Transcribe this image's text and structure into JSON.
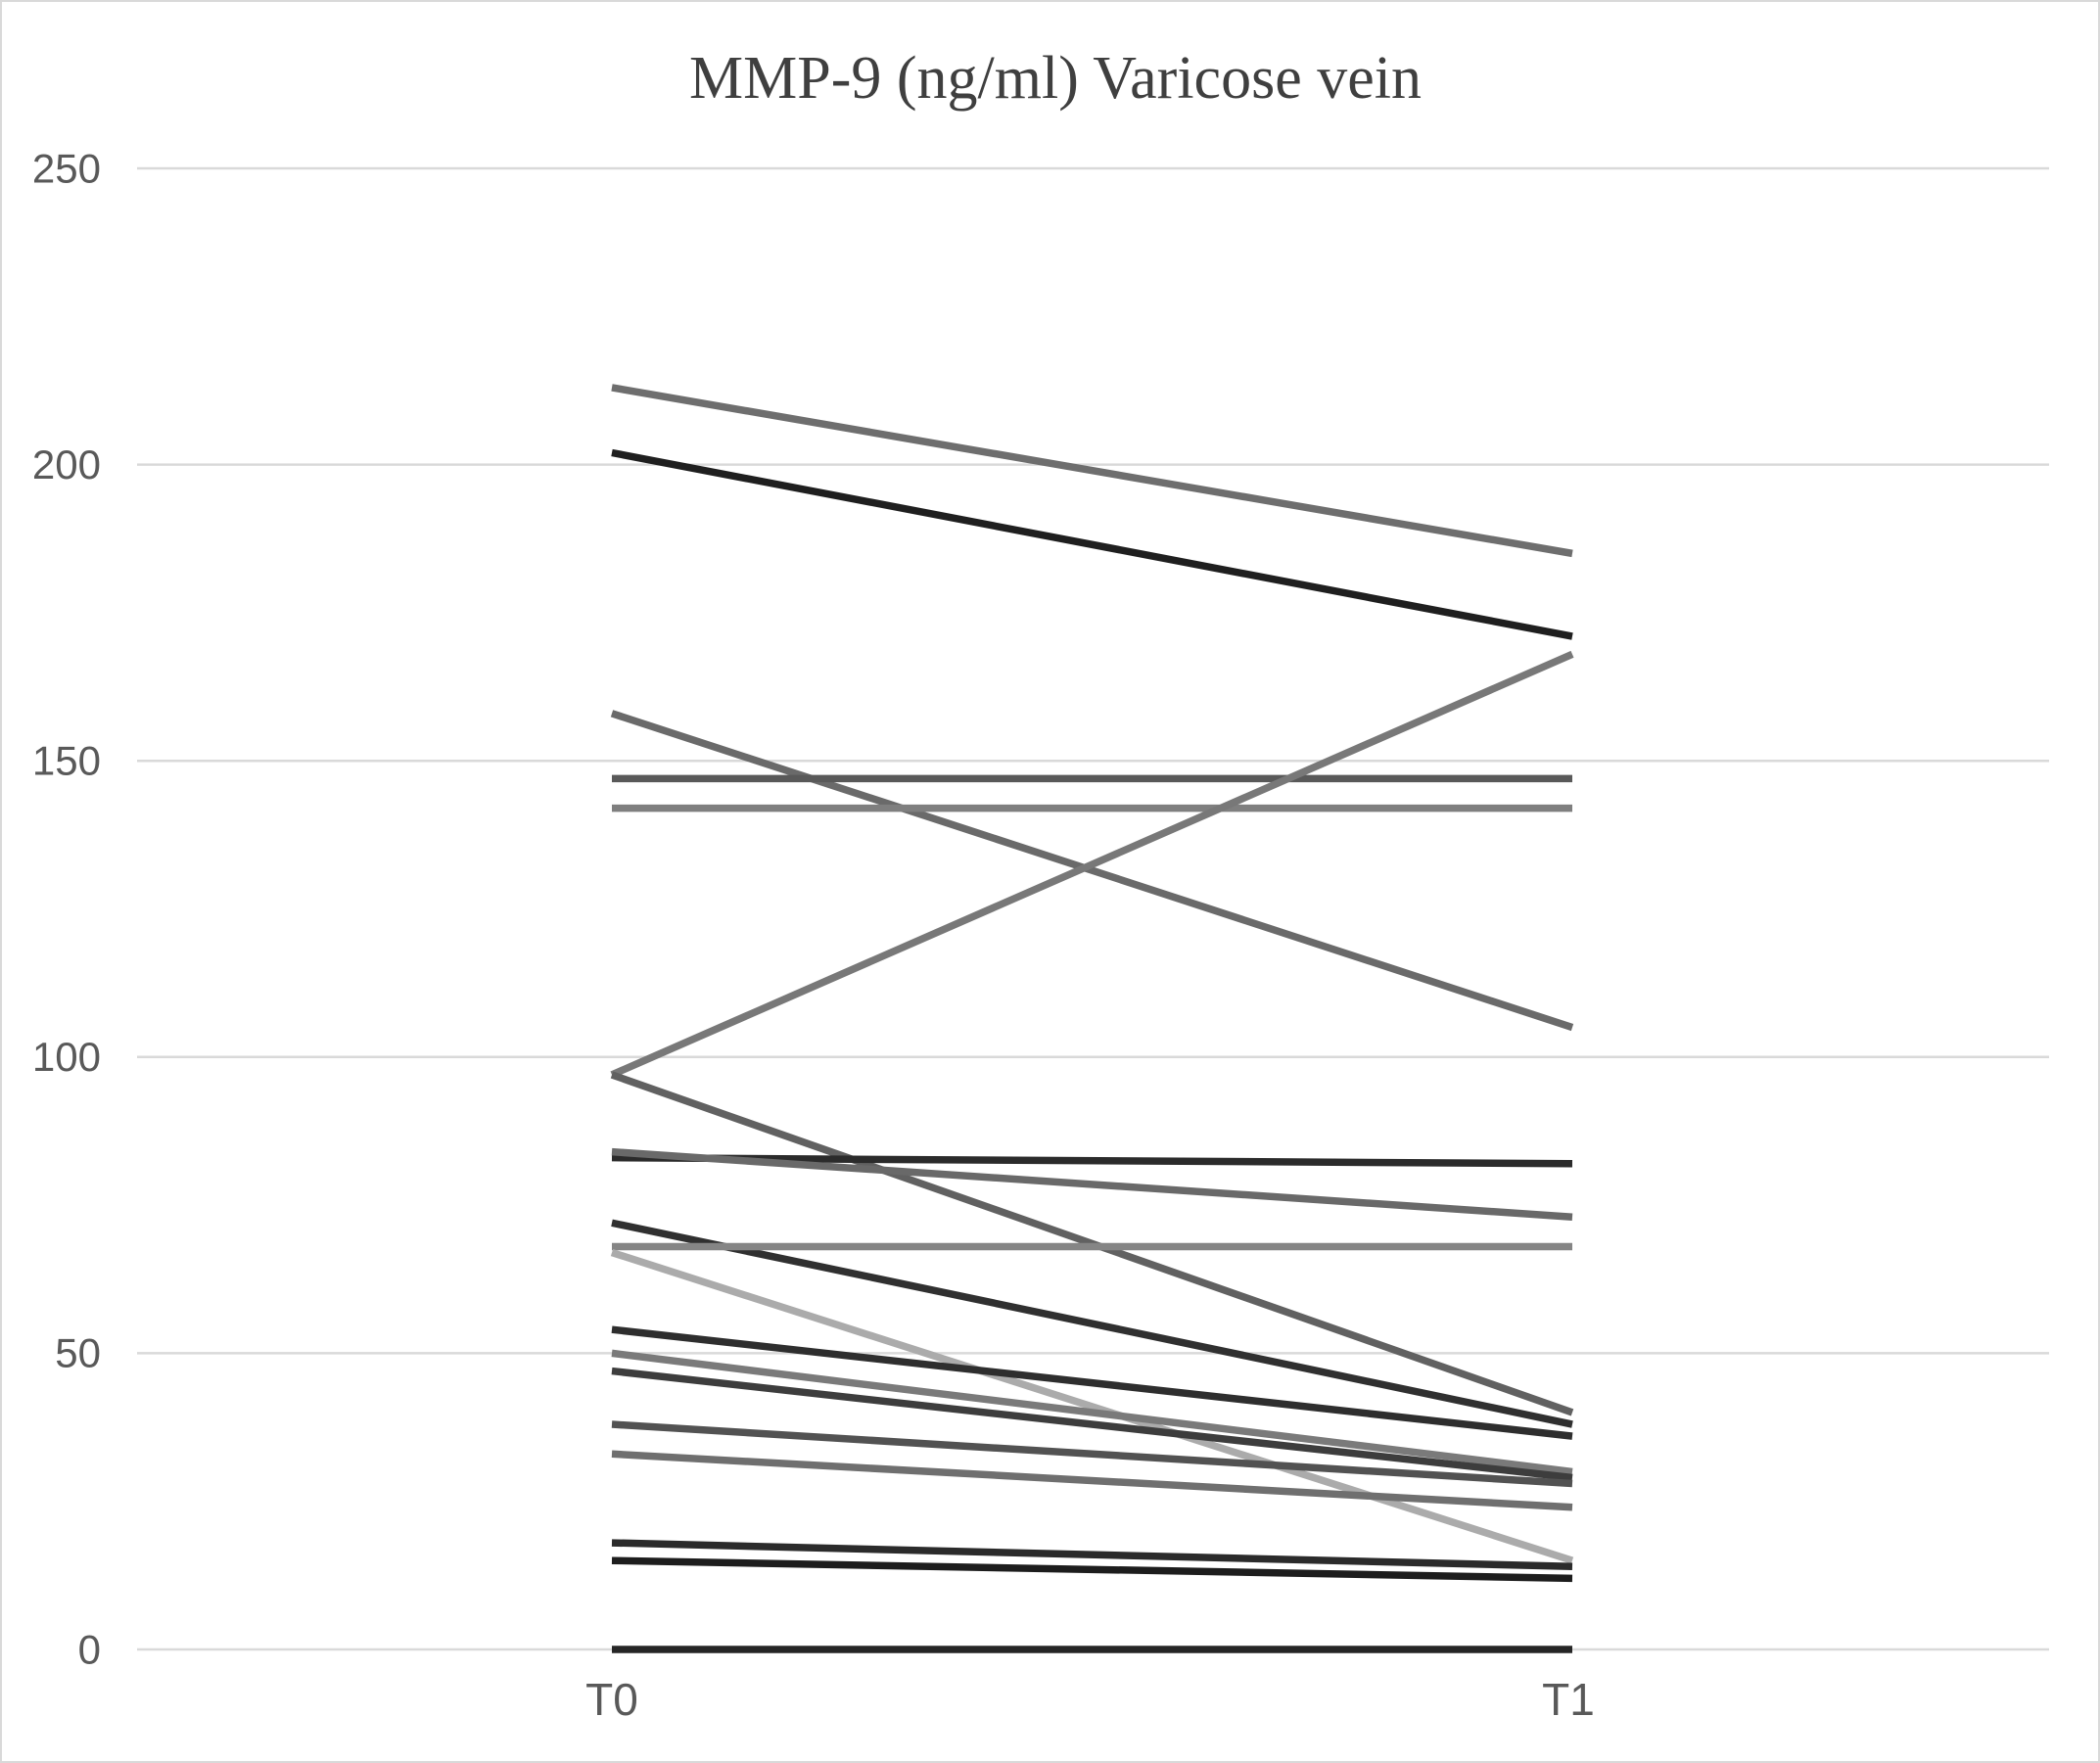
{
  "title": "MMP-9 (ng/ml) Varicose vein",
  "chart_data": {
    "type": "line",
    "subtype": "paired-spaghetti",
    "title": "MMP-9 (ng/ml) Varicose vein",
    "categories": [
      "T0",
      "T1"
    ],
    "xlabel": "",
    "ylabel": "",
    "unit": "ng/ml",
    "ylim": [
      0,
      250
    ],
    "y_ticks": [
      250,
      200,
      150,
      100,
      50,
      0
    ],
    "grid": true,
    "legend_position": "none",
    "series": [
      {
        "values": [
          213,
          185
        ],
        "color": "#6e6e6e"
      },
      {
        "values": [
          202,
          171
        ],
        "color": "#1f1f1f"
      },
      {
        "values": [
          158,
          105
        ],
        "color": "#6a6a6a"
      },
      {
        "values": [
          147,
          147
        ],
        "color": "#595959"
      },
      {
        "values": [
          142,
          142
        ],
        "color": "#7f7f7f"
      },
      {
        "values": [
          97,
          168
        ],
        "color": "#787878"
      },
      {
        "values": [
          97,
          40
        ],
        "color": "#616161"
      },
      {
        "values": [
          83,
          82
        ],
        "color": "#2b2b2b"
      },
      {
        "values": [
          84,
          73
        ],
        "color": "#696969"
      },
      {
        "values": [
          72,
          38
        ],
        "color": "#303030"
      },
      {
        "values": [
          68,
          68
        ],
        "color": "#858585"
      },
      {
        "values": [
          67,
          15
        ],
        "color": "#ababab"
      },
      {
        "values": [
          54,
          36
        ],
        "color": "#2e2e2e"
      },
      {
        "values": [
          50,
          30
        ],
        "color": "#7a7a7a"
      },
      {
        "values": [
          47,
          29
        ],
        "color": "#3d3d3d"
      },
      {
        "values": [
          38,
          28
        ],
        "color": "#525252"
      },
      {
        "values": [
          33,
          24
        ],
        "color": "#6f6f6f"
      },
      {
        "values": [
          18,
          14
        ],
        "color": "#2b2b2b"
      },
      {
        "values": [
          15,
          12
        ],
        "color": "#1d1d1d"
      },
      {
        "values": [
          0,
          0
        ],
        "color": "#262626"
      }
    ],
    "colors": {
      "gridline": "#d9d9d9",
      "tick_label": "#595959",
      "title": "#3f3f3f",
      "border": "#d9d9d9",
      "background": "#ffffff"
    }
  }
}
